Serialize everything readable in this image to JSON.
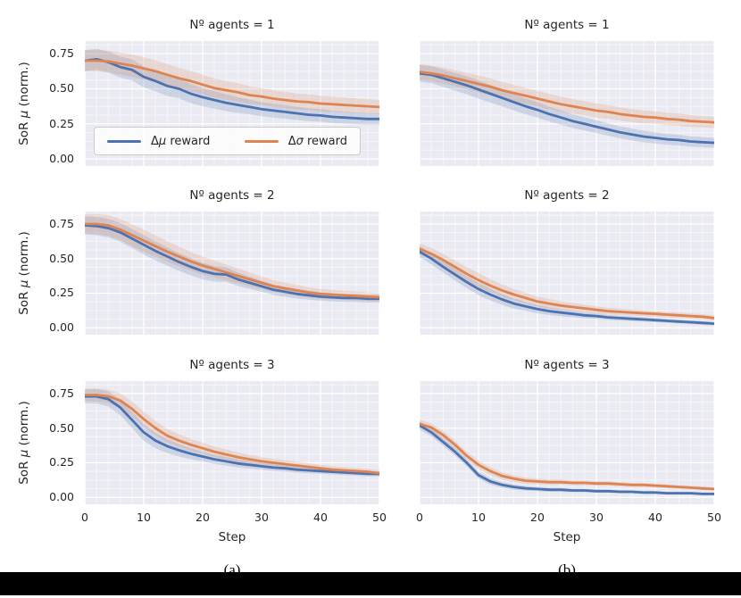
{
  "figure": {
    "background": "#ffffff",
    "plot_bg": "#eaeaf2",
    "grid_color": "#ffffff",
    "text_color": "#262626",
    "colors": {
      "blue": "#4c72b0",
      "orange": "#dd8452"
    },
    "band_alpha": 0.2,
    "xlabel": "Step",
    "ylabel": {
      "pre": "SoR ",
      "greek": "μ",
      "post": " (norm.)"
    },
    "x_ticks": [
      "0",
      "10",
      "20",
      "30",
      "40",
      "50"
    ],
    "x_tick_values": [
      0,
      10,
      20,
      30,
      40,
      50
    ],
    "y_ticks": [
      "0.00",
      "0.25",
      "0.50",
      "0.75"
    ],
    "y_tick_values": [
      0,
      0.25,
      0.5,
      0.75
    ],
    "xlim": [
      0,
      50
    ],
    "ylim": [
      -0.05,
      0.84
    ],
    "legend": [
      {
        "prefix": "Δ",
        "greek": "μ",
        "suffix": " reward",
        "color": "#4c72b0"
      },
      {
        "prefix": "Δ",
        "greek": "σ",
        "suffix": " reward",
        "color": "#dd8452"
      }
    ],
    "captions": [
      "(a)",
      "(b)"
    ]
  },
  "chart_data": [
    {
      "id": "a1",
      "type": "line",
      "title": "Nº agents = 1",
      "col": 0,
      "row": 0,
      "x": [
        0,
        2,
        4,
        6,
        8,
        10,
        12,
        14,
        16,
        18,
        20,
        22,
        24,
        26,
        28,
        30,
        32,
        34,
        36,
        38,
        40,
        42,
        44,
        46,
        48,
        50
      ],
      "series": [
        {
          "name": "Δμ reward",
          "color": "#4c72b0",
          "values": [
            0.7,
            0.71,
            0.69,
            0.655,
            0.635,
            0.585,
            0.555,
            0.52,
            0.5,
            0.465,
            0.44,
            0.42,
            0.4,
            0.385,
            0.37,
            0.355,
            0.345,
            0.335,
            0.325,
            0.315,
            0.31,
            0.3,
            0.295,
            0.29,
            0.285,
            0.285
          ],
          "spread_x": [
            0,
            10,
            20,
            30,
            40,
            50
          ],
          "spread": [
            0.075,
            0.075,
            0.065,
            0.05,
            0.045,
            0.04
          ]
        },
        {
          "name": "Δσ reward",
          "color": "#dd8452",
          "values": [
            0.7,
            0.7,
            0.695,
            0.68,
            0.665,
            0.645,
            0.625,
            0.6,
            0.575,
            0.555,
            0.53,
            0.505,
            0.49,
            0.475,
            0.455,
            0.445,
            0.43,
            0.42,
            0.41,
            0.405,
            0.395,
            0.39,
            0.385,
            0.38,
            0.375,
            0.37
          ],
          "spread_x": [
            0,
            10,
            20,
            30,
            40,
            50
          ],
          "spread": [
            0.075,
            0.08,
            0.07,
            0.06,
            0.055,
            0.05
          ]
        }
      ]
    },
    {
      "id": "b1",
      "type": "line",
      "title": "Nº agents = 1",
      "col": 1,
      "row": 0,
      "x": [
        0,
        2,
        4,
        6,
        8,
        10,
        12,
        14,
        16,
        18,
        20,
        22,
        24,
        26,
        28,
        30,
        32,
        34,
        36,
        38,
        40,
        42,
        44,
        46,
        48,
        50
      ],
      "series": [
        {
          "name": "Δμ reward",
          "color": "#4c72b0",
          "values": [
            0.61,
            0.6,
            0.575,
            0.55,
            0.525,
            0.495,
            0.465,
            0.435,
            0.405,
            0.375,
            0.35,
            0.32,
            0.295,
            0.27,
            0.25,
            0.23,
            0.21,
            0.19,
            0.175,
            0.16,
            0.15,
            0.14,
            0.135,
            0.125,
            0.12,
            0.115
          ],
          "spread_x": [
            0,
            10,
            20,
            30,
            40,
            50
          ],
          "spread": [
            0.06,
            0.065,
            0.055,
            0.045,
            0.04,
            0.035
          ]
        },
        {
          "name": "Δσ reward",
          "color": "#dd8452",
          "values": [
            0.62,
            0.61,
            0.595,
            0.575,
            0.555,
            0.535,
            0.515,
            0.49,
            0.47,
            0.45,
            0.43,
            0.41,
            0.39,
            0.375,
            0.36,
            0.345,
            0.335,
            0.32,
            0.31,
            0.3,
            0.295,
            0.285,
            0.28,
            0.27,
            0.265,
            0.26
          ],
          "spread_x": [
            0,
            10,
            20,
            30,
            40,
            50
          ],
          "spread": [
            0.055,
            0.06,
            0.055,
            0.05,
            0.045,
            0.04
          ]
        }
      ]
    },
    {
      "id": "a2",
      "type": "line",
      "title": "Nº agents = 2",
      "col": 0,
      "row": 1,
      "x": [
        0,
        2,
        4,
        6,
        8,
        10,
        12,
        14,
        16,
        18,
        20,
        22,
        24,
        26,
        28,
        30,
        32,
        34,
        36,
        38,
        40,
        42,
        44,
        46,
        48,
        50
      ],
      "series": [
        {
          "name": "Δμ reward",
          "color": "#4c72b0",
          "values": [
            0.74,
            0.735,
            0.72,
            0.69,
            0.645,
            0.6,
            0.555,
            0.515,
            0.475,
            0.44,
            0.41,
            0.39,
            0.385,
            0.35,
            0.325,
            0.3,
            0.275,
            0.26,
            0.245,
            0.235,
            0.225,
            0.22,
            0.215,
            0.215,
            0.21,
            0.21
          ],
          "spread_x": [
            0,
            10,
            20,
            30,
            40,
            50
          ],
          "spread": [
            0.065,
            0.07,
            0.06,
            0.04,
            0.03,
            0.028
          ]
        },
        {
          "name": "Δσ reward",
          "color": "#dd8452",
          "values": [
            0.75,
            0.75,
            0.74,
            0.71,
            0.67,
            0.63,
            0.59,
            0.55,
            0.515,
            0.48,
            0.45,
            0.425,
            0.4,
            0.375,
            0.35,
            0.325,
            0.3,
            0.285,
            0.27,
            0.255,
            0.245,
            0.24,
            0.235,
            0.23,
            0.225,
            0.22
          ],
          "spread_x": [
            0,
            10,
            20,
            30,
            40,
            50
          ],
          "spread": [
            0.07,
            0.08,
            0.065,
            0.045,
            0.035,
            0.03
          ]
        }
      ]
    },
    {
      "id": "b2",
      "type": "line",
      "title": "Nº agents = 2",
      "col": 1,
      "row": 1,
      "x": [
        0,
        2,
        4,
        6,
        8,
        10,
        12,
        14,
        16,
        18,
        20,
        22,
        24,
        26,
        28,
        30,
        32,
        34,
        36,
        38,
        40,
        42,
        44,
        46,
        48,
        50
      ],
      "series": [
        {
          "name": "Δμ reward",
          "color": "#4c72b0",
          "values": [
            0.55,
            0.5,
            0.44,
            0.385,
            0.33,
            0.28,
            0.24,
            0.205,
            0.175,
            0.155,
            0.135,
            0.12,
            0.11,
            0.1,
            0.09,
            0.085,
            0.075,
            0.07,
            0.065,
            0.06,
            0.055,
            0.05,
            0.045,
            0.04,
            0.035,
            0.03
          ],
          "spread_x": [
            0,
            10,
            20,
            30,
            40,
            50
          ],
          "spread": [
            0.04,
            0.045,
            0.03,
            0.02,
            0.015,
            0.013
          ]
        },
        {
          "name": "Δσ reward",
          "color": "#dd8452",
          "values": [
            0.57,
            0.535,
            0.49,
            0.44,
            0.39,
            0.345,
            0.305,
            0.27,
            0.24,
            0.215,
            0.19,
            0.175,
            0.16,
            0.15,
            0.14,
            0.13,
            0.12,
            0.115,
            0.11,
            0.105,
            0.1,
            0.095,
            0.09,
            0.085,
            0.08,
            0.07
          ],
          "spread_x": [
            0,
            10,
            20,
            30,
            40,
            50
          ],
          "spread": [
            0.04,
            0.05,
            0.035,
            0.025,
            0.02,
            0.018
          ]
        }
      ]
    },
    {
      "id": "a3",
      "type": "line",
      "title": "Nº agents = 3",
      "col": 0,
      "row": 2,
      "x": [
        0,
        2,
        4,
        6,
        8,
        10,
        12,
        14,
        16,
        18,
        20,
        22,
        24,
        26,
        28,
        30,
        32,
        34,
        36,
        38,
        40,
        42,
        44,
        46,
        48,
        50
      ],
      "series": [
        {
          "name": "Δμ reward",
          "color": "#4c72b0",
          "values": [
            0.73,
            0.73,
            0.71,
            0.65,
            0.56,
            0.47,
            0.41,
            0.37,
            0.34,
            0.315,
            0.295,
            0.275,
            0.26,
            0.245,
            0.235,
            0.225,
            0.215,
            0.21,
            0.2,
            0.195,
            0.19,
            0.185,
            0.18,
            0.175,
            0.17,
            0.17
          ],
          "spread_x": [
            0,
            10,
            20,
            30,
            40,
            50
          ],
          "spread": [
            0.05,
            0.06,
            0.035,
            0.025,
            0.02,
            0.018
          ]
        },
        {
          "name": "Δσ reward",
          "color": "#dd8452",
          "values": [
            0.74,
            0.74,
            0.73,
            0.7,
            0.64,
            0.565,
            0.5,
            0.445,
            0.41,
            0.38,
            0.355,
            0.33,
            0.31,
            0.29,
            0.275,
            0.26,
            0.25,
            0.24,
            0.23,
            0.22,
            0.21,
            0.2,
            0.195,
            0.19,
            0.185,
            0.175
          ],
          "spread_x": [
            0,
            10,
            20,
            30,
            40,
            50
          ],
          "spread": [
            0.045,
            0.055,
            0.04,
            0.03,
            0.025,
            0.02
          ]
        }
      ]
    },
    {
      "id": "b3",
      "type": "line",
      "title": "Nº agents = 3",
      "col": 1,
      "row": 2,
      "x": [
        0,
        2,
        4,
        6,
        8,
        10,
        12,
        14,
        16,
        18,
        20,
        22,
        24,
        26,
        28,
        30,
        32,
        34,
        36,
        38,
        40,
        42,
        44,
        46,
        48,
        50
      ],
      "series": [
        {
          "name": "Δμ reward",
          "color": "#4c72b0",
          "values": [
            0.52,
            0.47,
            0.4,
            0.33,
            0.25,
            0.16,
            0.115,
            0.09,
            0.075,
            0.065,
            0.06,
            0.055,
            0.055,
            0.05,
            0.05,
            0.045,
            0.045,
            0.04,
            0.04,
            0.035,
            0.035,
            0.03,
            0.03,
            0.03,
            0.025,
            0.025
          ],
          "spread_x": [
            0,
            10,
            20,
            30,
            40,
            50
          ],
          "spread": [
            0.03,
            0.025,
            0.015,
            0.012,
            0.01,
            0.01
          ]
        },
        {
          "name": "Δσ reward",
          "color": "#dd8452",
          "values": [
            0.53,
            0.505,
            0.45,
            0.38,
            0.3,
            0.235,
            0.19,
            0.155,
            0.135,
            0.12,
            0.115,
            0.11,
            0.11,
            0.105,
            0.105,
            0.1,
            0.1,
            0.095,
            0.09,
            0.09,
            0.085,
            0.08,
            0.075,
            0.07,
            0.065,
            0.06
          ],
          "spread_x": [
            0,
            10,
            20,
            30,
            40,
            50
          ],
          "spread": [
            0.03,
            0.03,
            0.02,
            0.016,
            0.014,
            0.012
          ]
        }
      ]
    }
  ]
}
